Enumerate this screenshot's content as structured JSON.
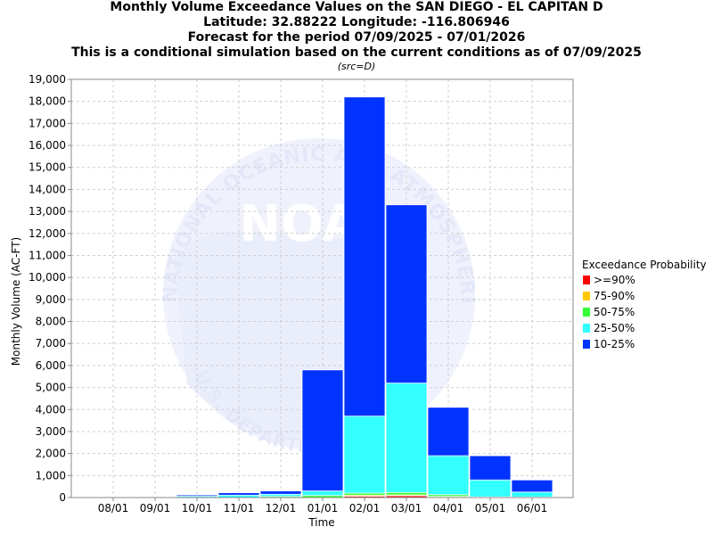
{
  "chart_data": {
    "type": "bar",
    "title_lines": [
      "Monthly Volume Exceedance Values on the SAN DIEGO - EL CAPITAN D",
      "Latitude: 32.88222 Longitude: -116.806946",
      "Forecast for the period 07/09/2025 - 07/01/2026",
      "This is a conditional simulation based on the current conditions as of 07/09/2025"
    ],
    "subtitle": "(src=D)",
    "xlabel": "Time",
    "ylabel": "Monthly Volume (AC-FT)",
    "ylim": [
      0,
      19000
    ],
    "ytick_step": 1000,
    "grid": true,
    "legend_title": "Exceedance Probability",
    "legend_position": "right",
    "categories": [
      "08/01",
      "09/01",
      "10/01",
      "11/01",
      "12/01",
      "01/01",
      "02/01",
      "03/01",
      "04/01",
      "05/01",
      "06/01"
    ],
    "series": [
      {
        "name": ">=90%",
        "color": "#ff0000",
        "values": [
          0,
          0,
          0,
          0,
          0,
          0,
          60,
          80,
          20,
          0,
          0
        ]
      },
      {
        "name": "75-90%",
        "color": "#ffc800",
        "values": [
          0,
          0,
          0,
          0,
          0,
          0,
          110,
          120,
          50,
          0,
          0
        ]
      },
      {
        "name": "50-75%",
        "color": "#33ff33",
        "values": [
          0,
          0,
          0,
          0,
          50,
          90,
          200,
          230,
          130,
          30,
          20
        ]
      },
      {
        "name": "25-50%",
        "color": "#33ffff",
        "values": [
          25,
          30,
          60,
          110,
          150,
          300,
          3700,
          5200,
          1900,
          800,
          250
        ]
      },
      {
        "name": "10-25%",
        "color": "#0033ff",
        "values": [
          40,
          50,
          120,
          220,
          300,
          5800,
          18200,
          13300,
          4100,
          1900,
          800
        ]
      }
    ]
  },
  "watermark": {
    "logo_text": "NOAA",
    "ring_text_top": "NATIONAL OCEANIC AND ATMOSPHERIC ADMINISTRATION",
    "ring_text_bottom": "U.S. DEPARTMENT OF COMMERCE"
  }
}
